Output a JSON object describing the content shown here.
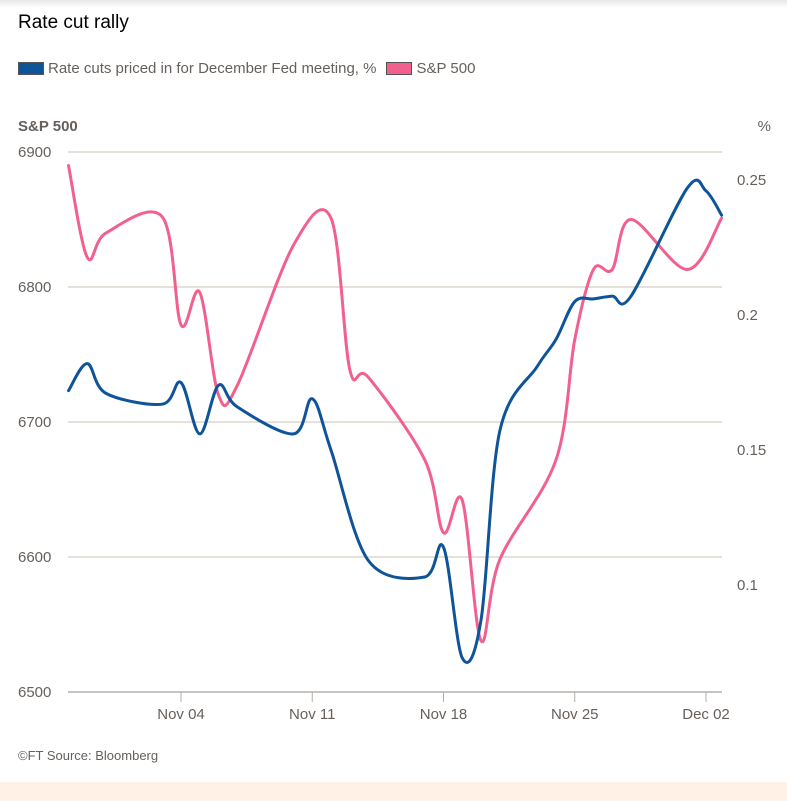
{
  "chart_data": {
    "type": "line",
    "title": "Rate cut rally",
    "left_axis": {
      "label": "S&P 500",
      "ylim": [
        6500,
        6900
      ],
      "ticks": [
        6500,
        6600,
        6700,
        6800,
        6900
      ]
    },
    "right_axis": {
      "label": "%",
      "ylim": [
        0.0604,
        0.2604
      ],
      "ticks": [
        0.1,
        0.15,
        0.2,
        0.25
      ],
      "tick_labels": [
        "0.1",
        "0.15",
        "0.2",
        "0.25"
      ]
    },
    "x_ticks": [
      "2024-11-04",
      "2024-11-11",
      "2024-11-18",
      "2024-11-25",
      "2024-12-02"
    ],
    "x_tick_labels": [
      "Nov 04",
      "Nov 11",
      "Nov 18",
      "Nov 25",
      "Dec 02"
    ],
    "grid": true,
    "legend_placement": "top-left",
    "series": [
      {
        "name": "Rate cuts priced in for December Fed meeting, %",
        "axis": "right",
        "color": "#0f5499",
        "x": [
          "2024-10-29",
          "2024-10-30",
          "2024-10-31",
          "2024-11-03",
          "2024-11-04",
          "2024-11-05",
          "2024-11-06",
          "2024-11-07",
          "2024-11-10",
          "2024-11-11",
          "2024-11-12",
          "2024-11-14",
          "2024-11-17",
          "2024-11-18",
          "2024-11-19",
          "2024-11-20",
          "2024-11-21",
          "2024-11-23",
          "2024-11-24",
          "2024-11-25",
          "2024-11-26",
          "2024-11-27",
          "2024-11-28",
          "2024-12-01",
          "2024-12-02",
          "2024-12-02T20:00"
        ],
        "y": [
          0.172,
          0.182,
          0.171,
          0.167,
          0.175,
          0.156,
          0.174,
          0.166,
          0.156,
          0.169,
          0.15,
          0.109,
          0.103,
          0.114,
          0.073,
          0.087,
          0.157,
          0.181,
          0.191,
          0.205,
          0.206,
          0.207,
          0.207,
          0.247,
          0.246,
          0.237
        ]
      },
      {
        "name": "S&P 500",
        "axis": "left",
        "color": "#f2608e",
        "x": [
          "2024-10-29",
          "2024-10-30",
          "2024-10-31",
          "2024-11-03",
          "2024-11-04",
          "2024-11-05",
          "2024-11-06",
          "2024-11-07",
          "2024-11-10",
          "2024-11-12",
          "2024-11-13",
          "2024-11-14",
          "2024-11-17",
          "2024-11-18",
          "2024-11-19",
          "2024-11-20",
          "2024-11-21",
          "2024-11-24",
          "2024-11-25",
          "2024-11-26",
          "2024-11-27",
          "2024-11-28",
          "2024-12-01",
          "2024-12-02T20:00"
        ],
        "y": [
          6890,
          6822,
          6840,
          6852,
          6772,
          6796,
          6720,
          6727,
          6831,
          6851,
          6739,
          6733,
          6672,
          6618,
          6642,
          6538,
          6598,
          6672,
          6761,
          6813,
          6813,
          6850,
          6813,
          6851
        ]
      }
    ]
  },
  "source": "©FT Source: Bloomberg"
}
